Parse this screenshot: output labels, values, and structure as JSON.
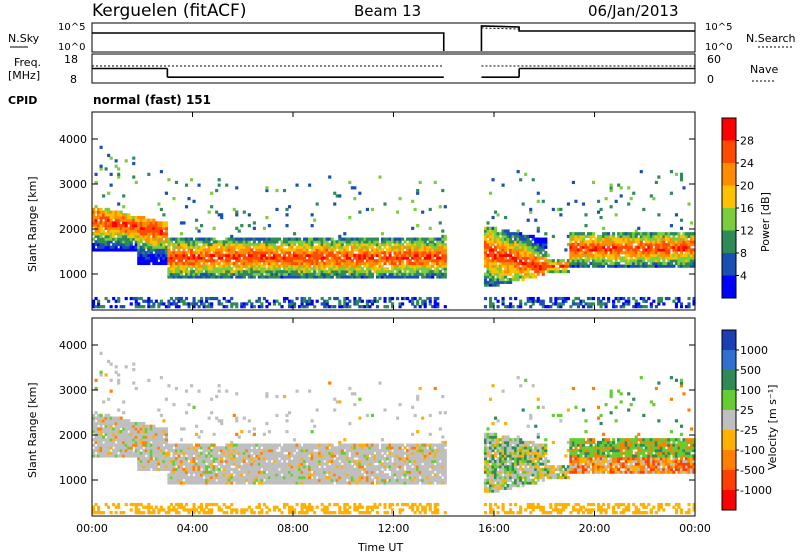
{
  "header": {
    "station": "Kerguelen (fitACF)",
    "beam": "Beam 13",
    "date": "06/Jan/2013"
  },
  "sky_panel": {
    "left_label": "N.Sky",
    "right_label": "N.Search",
    "tick_top": "10^5",
    "tick_bottom": "10^0",
    "tick_top_right": "10^5",
    "tick_bottom_right": "10^0"
  },
  "freq_panel": {
    "left_label_1": "Freq.",
    "left_label_2": "[MHz]",
    "right_label": "Nave",
    "left_ticks": [
      "18",
      "8"
    ],
    "right_ticks": [
      "60",
      "0"
    ]
  },
  "cpid": {
    "label": "CPID",
    "value": "normal (fast) 151"
  },
  "power_panel": {
    "ylabel": "Slant Range [km]",
    "yticks": [
      "4000",
      "3000",
      "2000",
      "1000"
    ],
    "colorbar_label": "Power [dB]",
    "colorbar_ticks": [
      "28",
      "24",
      "20",
      "16",
      "12",
      "8",
      "4"
    ],
    "colorbar_colors": [
      "#ff0000",
      "#ff4a00",
      "#ff8c00",
      "#ffc000",
      "#7ccd3c",
      "#2e8b57",
      "#1a4fb4",
      "#0000ff"
    ]
  },
  "velocity_panel": {
    "ylabel": "Slant Range [km]",
    "yticks": [
      "4000",
      "3000",
      "2000",
      "1000"
    ],
    "colorbar_label": "Velocity [m s⁻¹]",
    "colorbar_ticks": [
      "1000",
      "500",
      "100",
      "25",
      "-25",
      "-100",
      "-500",
      "-1000"
    ],
    "colorbar_colors": [
      "#1a3fb4",
      "#2f6fd0",
      "#2e8b57",
      "#66cc33",
      "#bfbfbf",
      "#ffb000",
      "#ff8000",
      "#ff4000",
      "#ff0000"
    ]
  },
  "x_axis": {
    "ticks": [
      "00:00",
      "04:00",
      "08:00",
      "12:00",
      "16:00",
      "20:00",
      "00:00"
    ],
    "label": "Time UT"
  },
  "chart_data": {
    "type": "heatmap",
    "x_unit": "hours UT",
    "x_range": [
      0,
      24
    ],
    "y_range_km": [
      200,
      4600
    ],
    "gap_hours": [
      14.0,
      15.5
    ],
    "freq_mhz": [
      {
        "start": 0,
        "end": 3,
        "value": 13
      },
      {
        "start": 3,
        "end": 14,
        "value": 10
      },
      {
        "start": 15.5,
        "end": 17,
        "value": 10
      },
      {
        "start": 17,
        "end": 24,
        "value": 13
      }
    ],
    "power_bands": [
      {
        "start": 0,
        "end": 3,
        "range_top": 2500,
        "range_bottom": 1500,
        "peak_db": 22
      },
      {
        "start": 3,
        "end": 14,
        "range_top": 1800,
        "range_bottom": 900,
        "peak_db": 26
      },
      {
        "start": 15.5,
        "end": 18,
        "range_top": 2000,
        "range_bottom": 600,
        "peak_db": 28
      },
      {
        "start": 19,
        "end": 24,
        "range_top": 2000,
        "range_bottom": 1100,
        "peak_db": 20
      }
    ]
  }
}
